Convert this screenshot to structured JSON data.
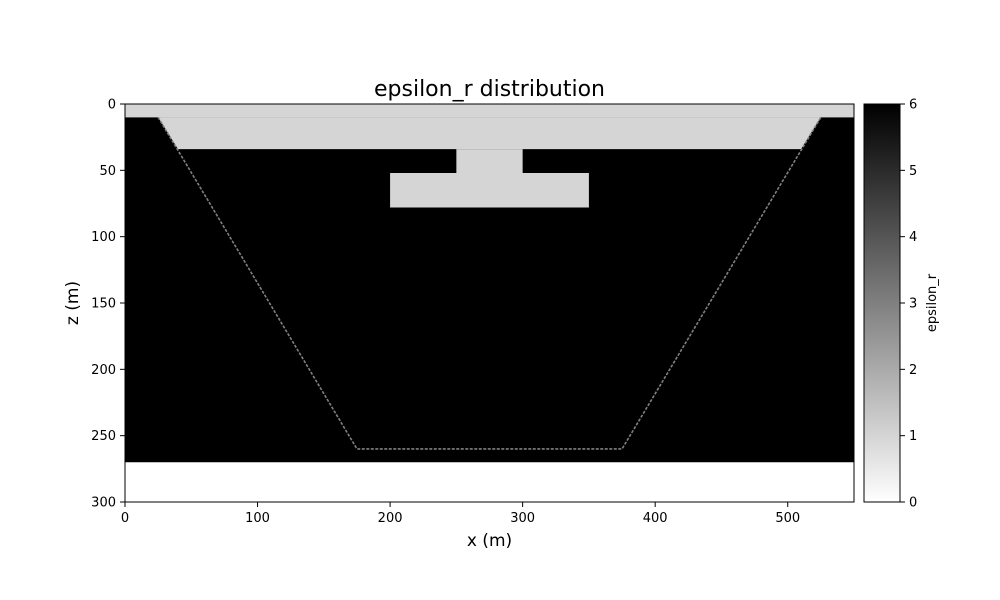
{
  "chart_data": {
    "type": "heatmap",
    "title": "epsilon_r distribution",
    "xlabel": "x (m)",
    "ylabel": "z (m)",
    "xlim": [
      0,
      550
    ],
    "ylim": [
      300,
      0
    ],
    "y_inverted": true,
    "xticks": [
      "0",
      "100",
      "200",
      "300",
      "400",
      "500"
    ],
    "xtick_values": [
      0,
      100,
      200,
      300,
      400,
      500
    ],
    "yticks": [
      "0",
      "50",
      "100",
      "150",
      "200",
      "250",
      "300"
    ],
    "ytick_values": [
      0,
      50,
      100,
      150,
      200,
      250,
      300
    ],
    "colormap": "gray_r",
    "colorbar": {
      "label": "epsilon_r",
      "range": [
        0,
        6
      ],
      "ticks": [
        "0",
        "1",
        "2",
        "3",
        "4",
        "5",
        "6"
      ],
      "tick_values": [
        0,
        1,
        2,
        3,
        4,
        5,
        6
      ]
    },
    "regions": [
      {
        "name": "background",
        "epsilon_r": 0,
        "polygon": [
          [
            0,
            0
          ],
          [
            550,
            0
          ],
          [
            550,
            300
          ],
          [
            0,
            300
          ]
        ]
      },
      {
        "name": "dielectric_body",
        "epsilon_r": 6,
        "polygon": [
          [
            0,
            270
          ],
          [
            550,
            270
          ],
          [
            550,
            10
          ],
          [
            0,
            10
          ]
        ]
      },
      {
        "name": "top_air_layer",
        "epsilon_r": 1,
        "polygon": [
          [
            0,
            0
          ],
          [
            550,
            0
          ],
          [
            550,
            10
          ],
          [
            0,
            10
          ]
        ]
      },
      {
        "name": "trench_top_band",
        "epsilon_r": 1,
        "polygon": [
          [
            25,
            10
          ],
          [
            525,
            10
          ],
          [
            510,
            34
          ],
          [
            40,
            34
          ]
        ]
      },
      {
        "name": "t_stem",
        "epsilon_r": 1,
        "polygon": [
          [
            250,
            34
          ],
          [
            300,
            34
          ],
          [
            300,
            52
          ],
          [
            250,
            52
          ]
        ]
      },
      {
        "name": "t_crossbar",
        "epsilon_r": 1,
        "polygon": [
          [
            200,
            52
          ],
          [
            350,
            52
          ],
          [
            350,
            78
          ],
          [
            200,
            78
          ]
        ]
      }
    ],
    "trench_outline": {
      "epsilon_r": 3,
      "points": [
        [
          25,
          10
        ],
        [
          175,
          260
        ],
        [
          375,
          260
        ],
        [
          525,
          10
        ]
      ]
    }
  }
}
